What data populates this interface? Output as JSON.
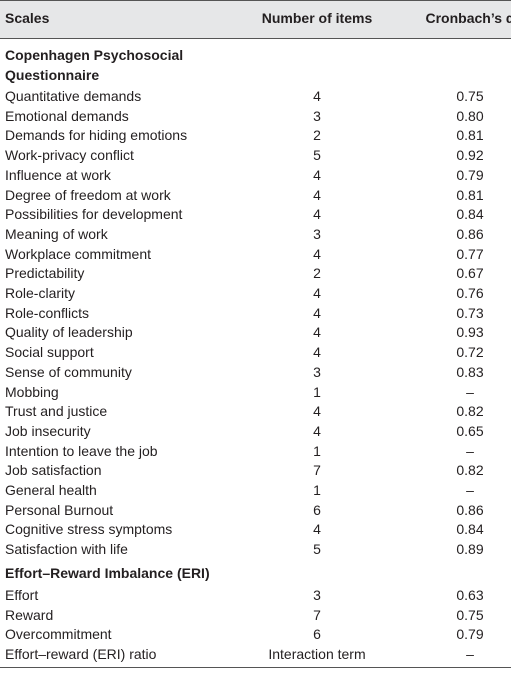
{
  "header": [
    "Scales",
    "Number of items",
    "Cronbach’s α"
  ],
  "sections": [
    {
      "title": "Copenhagen Psychosocial Questionnaire",
      "rows": [
        [
          "Quantitative demands",
          "4",
          "0.75"
        ],
        [
          "Emotional demands",
          "3",
          "0.80"
        ],
        [
          "Demands for hiding emotions",
          "2",
          "0.81"
        ],
        [
          "Work-privacy conflict",
          "5",
          "0.92"
        ],
        [
          "Influence at work",
          "4",
          "0.79"
        ],
        [
          "Degree of freedom at work",
          "4",
          "0.81"
        ],
        [
          "Possibilities for development",
          "4",
          "0.84"
        ],
        [
          "Meaning of work",
          "3",
          "0.86"
        ],
        [
          "Workplace commitment",
          "4",
          "0.77"
        ],
        [
          "Predictability",
          "2",
          "0.67"
        ],
        [
          "Role-clarity",
          "4",
          "0.76"
        ],
        [
          "Role-conflicts",
          "4",
          "0.73"
        ],
        [
          "Quality of leadership",
          "4",
          "0.93"
        ],
        [
          "Social support",
          "4",
          "0.72"
        ],
        [
          "Sense of community",
          "3",
          "0.83"
        ],
        [
          "Mobbing",
          "1",
          "–"
        ],
        [
          "Trust and justice",
          "4",
          "0.82"
        ],
        [
          "Job insecurity",
          "4",
          "0.65"
        ],
        [
          "Intention to leave the job",
          "1",
          "–"
        ],
        [
          "Job satisfaction",
          "7",
          "0.82"
        ],
        [
          "General health",
          "1",
          "–"
        ],
        [
          "Personal Burnout",
          "6",
          "0.86"
        ],
        [
          "Cognitive stress symptoms",
          "4",
          "0.84"
        ],
        [
          "Satisfaction with life",
          "5",
          "0.89"
        ]
      ]
    },
    {
      "title": "Effort–Reward Imbalance (ERI)",
      "rows": [
        [
          "Effort",
          "3",
          "0.63"
        ],
        [
          "Reward",
          "7",
          "0.75"
        ],
        [
          "Overcommitment",
          "6",
          "0.79"
        ],
        [
          "Effort–reward (ERI) ratio",
          "Interaction term",
          "–"
        ]
      ]
    }
  ]
}
